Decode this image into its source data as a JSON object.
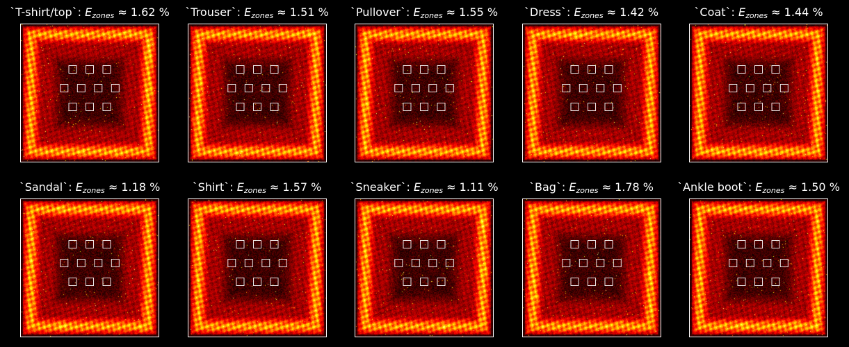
{
  "chart_data": {
    "type": "heatmap",
    "colormap": "hot",
    "zone_layout_rows": [
      3,
      4,
      3
    ],
    "panels": [
      {
        "class_name": "T-shirt/top",
        "title_prefix": "`T-shirt/top`:",
        "symbol": "E",
        "subscript": "zones",
        "relation": "≈",
        "value": 1.62,
        "value_text": "1.62 %"
      },
      {
        "class_name": "Trouser",
        "title_prefix": "`Trouser`:",
        "symbol": "E",
        "subscript": "zones",
        "relation": "≈",
        "value": 1.51,
        "value_text": "1.51 %"
      },
      {
        "class_name": "Pullover",
        "title_prefix": "`Pullover`:",
        "symbol": "E",
        "subscript": "zones",
        "relation": "≈",
        "value": 1.55,
        "value_text": "1.55 %"
      },
      {
        "class_name": "Dress",
        "title_prefix": "`Dress`:",
        "symbol": "E",
        "subscript": "zones",
        "relation": "≈",
        "value": 1.42,
        "value_text": "1.42 %"
      },
      {
        "class_name": "Coat",
        "title_prefix": "`Coat`:",
        "symbol": "E",
        "subscript": "zones",
        "relation": "≈",
        "value": 1.44,
        "value_text": "1.44 %"
      },
      {
        "class_name": "Sandal",
        "title_prefix": "`Sandal`:",
        "symbol": "E",
        "subscript": "zones",
        "relation": "≈",
        "value": 1.18,
        "value_text": "1.18 %"
      },
      {
        "class_name": "Shirt",
        "title_prefix": "`Shirt`:",
        "symbol": "E",
        "subscript": "zones",
        "relation": "≈",
        "value": 1.57,
        "value_text": "1.57 %"
      },
      {
        "class_name": "Sneaker",
        "title_prefix": "`Sneaker`:",
        "symbol": "E",
        "subscript": "zones",
        "relation": "≈",
        "value": 1.11,
        "value_text": "1.11 %"
      },
      {
        "class_name": "Bag",
        "title_prefix": "`Bag`:",
        "symbol": "E",
        "subscript": "zones",
        "relation": "≈",
        "value": 1.78,
        "value_text": "1.78 %"
      },
      {
        "class_name": "Ankle boot",
        "title_prefix": "`Ankle boot`:",
        "symbol": "E",
        "subscript": "zones",
        "relation": "≈",
        "value": 1.5,
        "value_text": "1.50 %"
      }
    ]
  }
}
